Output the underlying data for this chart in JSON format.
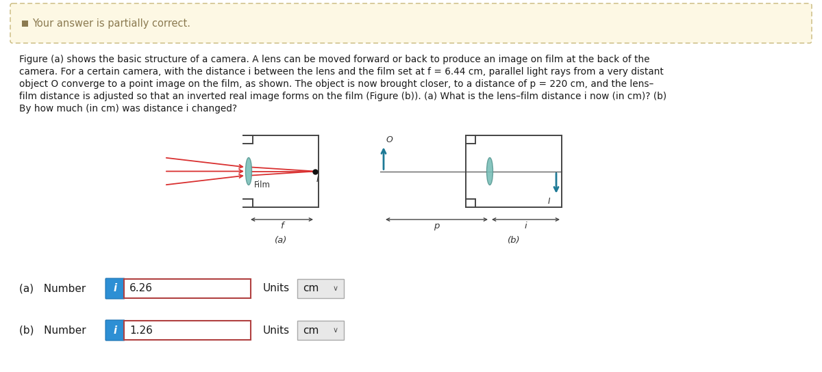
{
  "bg_color": "#ffffff",
  "banner_bg": "#fdf8e4",
  "banner_border": "#c8b87a",
  "banner_text": "Your answer is partially correct.",
  "banner_icon_color": "#8b7a50",
  "body_text_lines": [
    "Figure (a) shows the basic structure of a camera. A lens can be moved forward or back to produce an image on film at the back of the",
    "camera. For a certain camera, with the distance i between the lens and the film set at f = 6.44 cm, parallel light rays from a very distant",
    "object O converge to a point image on the film, as shown. The object is now brought closer, to a distance of p = 220 cm, and the lens–",
    "film distance is adjusted so that an inverted real image forms on the film (Figure (b)). (a) What is the lens–film distance i now (in cm)? (b)",
    "By how much (in cm) was distance i changed?"
  ],
  "answer_a_value": "6.26",
  "answer_b_value": "1.26",
  "answer_a_units": "cm",
  "answer_b_units": "cm",
  "fig_a_label": "(a)",
  "fig_b_label": "(b)",
  "film_label": "Film",
  "f_label": "f",
  "p_label": "p",
  "i_label": "i",
  "O_label": "O",
  "I_label": "I",
  "lens_color": "#7abfb8",
  "lens_edge": "#5a9a94",
  "ray_color": "#d93030",
  "arrow_color": "#1e7a96",
  "camera_color": "#444444",
  "dot_color": "#111111",
  "text_color": "#333333",
  "btn_color": "#2d8fd4",
  "btn_text": "white",
  "input_border": "#b04040",
  "units_bg": "#e8e8e8",
  "units_border": "#aaaaaa"
}
